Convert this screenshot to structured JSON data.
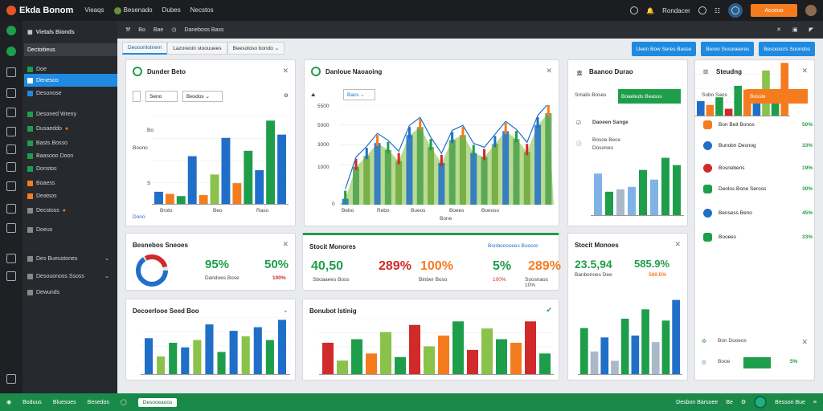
{
  "app": {
    "title": "Ekda Bonom",
    "nav": [
      "Vieaqs",
      "Besenado",
      "Dubes",
      "Necstos"
    ]
  },
  "topbar_right": {
    "user": "Rondacer",
    "action_btn": "Acceuo"
  },
  "sidebar": {
    "header": "Vietals Bionds",
    "section": "Dectoitieus",
    "items": [
      {
        "label": "Doe"
      },
      {
        "label": "Denesco"
      },
      {
        "label": "Desonose"
      },
      {
        "label": "Desoned Wreny"
      },
      {
        "label": "Dusaeddo"
      },
      {
        "label": "Basts Bosso"
      },
      {
        "label": "Baasooo Doon"
      },
      {
        "label": "Donstos"
      },
      {
        "label": "Boaess"
      },
      {
        "label": "Deatsos"
      },
      {
        "label": "Decstoss"
      },
      {
        "label": "Doeus"
      },
      {
        "label": "Des Bueustones"
      },
      {
        "label": "Desouonoss Ssoss"
      },
      {
        "label": "Dewunds"
      }
    ]
  },
  "subbar": {
    "items": [
      "Bo",
      "Bae",
      "Daneboss Bass"
    ]
  },
  "tabs": [
    "Deooonlotnem",
    "Lazoreoin stoouuees",
    "Beesoloso bondo"
  ],
  "toolbar_buttons": [
    "Ueen Bow Seres Basse",
    "Bereo Sosooeeres",
    "Besooscrs Soondos"
  ],
  "cards": {
    "c1": {
      "title": "Dunder Beto",
      "sel1": "Seno",
      "sel2": "Besdos",
      "xlabels": [
        "Dono",
        "Broto",
        "Beo",
        "Raso"
      ],
      "ylabels": [
        "Boono",
        "Bo",
        "S"
      ]
    },
    "c2": {
      "title": "Danloue Naoaoing",
      "sel": "Bacs",
      "ylabels": [
        "5500",
        "5000",
        "3000",
        "1000",
        "0"
      ],
      "xlabels": [
        "Bebo",
        "Rebo",
        "Bueos",
        "Boees",
        "Boeoso",
        "Bone"
      ]
    },
    "c3": {
      "title": "Baanoo Durao",
      "top_lbl": "Smalis Boses",
      "btn": "Boaeteds Beasss",
      "sub": "Daoeen Sange",
      "items": [
        "Bosoe Bece",
        "Dosoneo"
      ]
    },
    "c4": {
      "title": "Steudng",
      "sub": "Sobo Saos",
      "btn": "Bosslo"
    },
    "kpi1": {
      "title": "Besnebos Sneoes",
      "v1": "95%",
      "v2": "50%",
      "sub1": "Dandoes Bose",
      "sub2": "100%"
    },
    "kpi2": {
      "title": "Stocit Monores",
      "v1": "40,50",
      "v2": "289%",
      "v3": "100%",
      "v4": "5%",
      "v5": "289%",
      "sub1": "Sboaaees Boss",
      "sub2": "Binber Boso",
      "sub3": "100%",
      "sub4": "Soosnaos 10%",
      "link": "Bonbooosees Booore"
    },
    "kpi3": {
      "title": "Stocit Monoes",
      "v1": "23.5,94",
      "v2": "585.9%",
      "sub1": "Banbonoes Dee",
      "sub2": "500.5%"
    },
    "c5": {
      "title": "Decoerlooe Seed Boo"
    },
    "c6": {
      "title": "Bonubot Istinig"
    },
    "c8": {
      "title": "Bon Dooeos",
      "btn": "Booe",
      "val": "5%"
    },
    "list": [
      {
        "label": "Bon Beit Bonos",
        "val": "50%"
      },
      {
        "label": "Bunobn Desnog",
        "val": "33%"
      },
      {
        "label": "Bosnebens",
        "val": "19%"
      },
      {
        "label": "Deolos Bone Seross",
        "val": "30%"
      },
      {
        "label": "Bensess Beno",
        "val": "45%"
      },
      {
        "label": "Booees",
        "val": "33%"
      }
    ]
  },
  "footer": {
    "left": [
      "Boduus",
      "Bluesoes",
      "Besedos"
    ],
    "box": "Desooeaoos",
    "right": [
      "Desbon Barsoee",
      "Be",
      "Besson Bue"
    ]
  },
  "colors": {
    "green": "#1e9e4a",
    "blue": "#1f6fc8",
    "orange": "#f47c1f",
    "red": "#d02a2a",
    "accent": "#1f8ae0"
  },
  "chart_data": [
    {
      "type": "bar",
      "title": "Dunder Beto",
      "series": [
        {
          "values": [
            12,
            10,
            8,
            45,
            9,
            28,
            62,
            20,
            50,
            32,
            78,
            65
          ]
        }
      ]
    },
    {
      "type": "bar",
      "title": "Danloue Naoaoing",
      "series": [
        {
          "values": [
            6,
            38,
            49,
            62,
            55,
            44,
            70,
            78,
            58,
            42,
            65,
            70,
            52,
            48,
            61,
            74,
            66,
            53,
            80,
            92
          ]
        }
      ]
    },
    {
      "type": "bar",
      "title": "Baanoo Durao",
      "series": [
        {
          "values": [
            35,
            20,
            22,
            24,
            38,
            30,
            48,
            42
          ]
        }
      ]
    },
    {
      "type": "bar",
      "title": "Steudng",
      "series": [
        {
          "values": [
            20,
            15,
            25,
            10,
            40,
            35,
            20,
            60,
            25,
            70
          ]
        }
      ]
    },
    {
      "type": "bar",
      "title": "Decoerlooe Seed Boo",
      "series": [
        {
          "values": [
            40,
            20,
            35,
            30,
            38,
            55,
            25,
            48,
            42,
            52,
            38,
            60
          ]
        }
      ]
    },
    {
      "type": "bar",
      "title": "Bonubot Istinig",
      "series": [
        {
          "values": [
            18,
            8,
            20,
            12,
            24,
            10,
            28,
            16,
            22,
            30,
            14,
            26,
            20,
            18,
            30,
            12
          ]
        }
      ]
    },
    {
      "type": "bar",
      "title": "Stocit Monoes",
      "series": [
        {
          "values": [
            50,
            25,
            40,
            15,
            60,
            42,
            70,
            35,
            58,
            80
          ]
        }
      ]
    }
  ]
}
